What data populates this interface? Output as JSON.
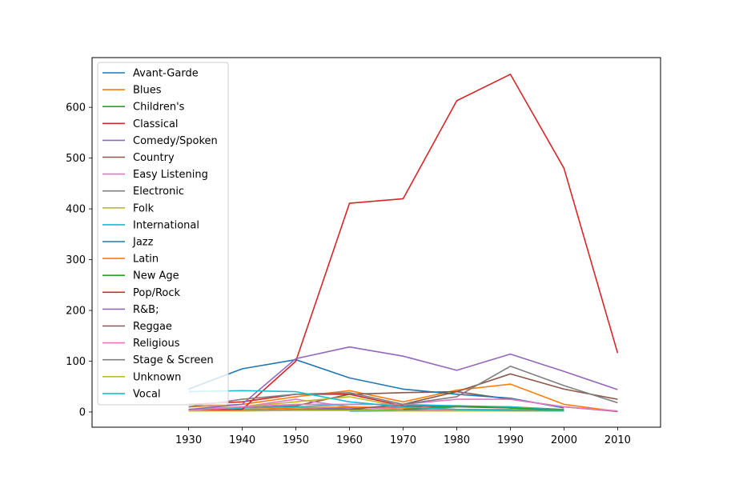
{
  "chart_data": {
    "type": "line",
    "title": "",
    "xlabel": "",
    "ylabel": "",
    "x": [
      1930,
      1940,
      1950,
      1960,
      1970,
      1980,
      1990,
      2000,
      2010
    ],
    "xlim": [
      1912,
      2018
    ],
    "ylim": [
      -30,
      698
    ],
    "xticks": [
      1930,
      1940,
      1950,
      1960,
      1970,
      1980,
      1990,
      2000,
      2010
    ],
    "yticks": [
      0,
      100,
      200,
      300,
      400,
      500,
      600
    ],
    "legend_position": "upper-left",
    "grid": false,
    "series": [
      {
        "name": "Avant-Garde",
        "color": "#1f77b4",
        "values": [
          null,
          null,
          null,
          2,
          2,
          2,
          3,
          2,
          null
        ]
      },
      {
        "name": "Blues",
        "color": "#ff7f0e",
        "values": [
          10,
          15,
          30,
          42,
          20,
          43,
          55,
          15,
          1
        ]
      },
      {
        "name": "Children's",
        "color": "#2ca02c",
        "values": [
          3,
          3,
          5,
          5,
          3,
          3,
          3,
          2,
          null
        ]
      },
      {
        "name": "Classical",
        "color": "#d62728",
        "values": [
          15,
          20,
          35,
          35,
          12,
          10,
          8,
          3,
          null
        ]
      },
      {
        "name": "Comedy/Spoken",
        "color": "#9467bd",
        "values": [
          2,
          2,
          5,
          8,
          10,
          5,
          4,
          2,
          null
        ]
      },
      {
        "name": "Country",
        "color": "#8c564b",
        "values": [
          5,
          8,
          12,
          35,
          38,
          40,
          25,
          10,
          1
        ]
      },
      {
        "name": "Easy Listening",
        "color": "#e377c2",
        "values": [
          5,
          10,
          25,
          10,
          5,
          3,
          3,
          2,
          null
        ]
      },
      {
        "name": "Electronic",
        "color": "#7f7f7f",
        "values": [
          null,
          null,
          null,
          null,
          3,
          10,
          10,
          5,
          null
        ]
      },
      {
        "name": "Folk",
        "color": "#bcbd22",
        "values": [
          5,
          10,
          20,
          30,
          10,
          5,
          3,
          2,
          null
        ]
      },
      {
        "name": "International",
        "color": "#17becf",
        "values": [
          5,
          8,
          10,
          15,
          15,
          12,
          10,
          3,
          null
        ]
      },
      {
        "name": "Jazz",
        "color": "#1f77b4",
        "values": [
          45,
          85,
          103,
          67,
          45,
          35,
          27,
          8,
          null
        ]
      },
      {
        "name": "Latin",
        "color": "#ff7f0e",
        "values": [
          3,
          5,
          8,
          10,
          8,
          5,
          5,
          2,
          null
        ]
      },
      {
        "name": "New Age",
        "color": "#2ca02c",
        "values": [
          null,
          null,
          null,
          null,
          5,
          12,
          8,
          3,
          null
        ]
      },
      {
        "name": "Pop/Rock",
        "color": "#d62728",
        "values": [
          2,
          5,
          100,
          411,
          420,
          613,
          665,
          480,
          116
        ]
      },
      {
        "name": "R&B;",
        "color": "#9467bd",
        "values": [
          5,
          15,
          105,
          128,
          110,
          82,
          114,
          80,
          44
        ]
      },
      {
        "name": "Reggae",
        "color": "#8c564b",
        "values": [
          null,
          null,
          null,
          5,
          15,
          40,
          75,
          45,
          25
        ]
      },
      {
        "name": "Religious",
        "color": "#e377c2",
        "values": [
          3,
          10,
          15,
          15,
          15,
          25,
          25,
          10,
          2
        ]
      },
      {
        "name": "Stage & Screen",
        "color": "#7f7f7f",
        "values": [
          10,
          25,
          35,
          38,
          15,
          30,
          90,
          52,
          18
        ]
      },
      {
        "name": "Unknown",
        "color": "#bcbd22",
        "values": [
          2,
          2,
          3,
          3,
          2,
          2,
          2,
          2,
          null
        ]
      },
      {
        "name": "Vocal",
        "color": "#17becf",
        "values": [
          40,
          42,
          40,
          20,
          10,
          5,
          3,
          2,
          null
        ]
      }
    ]
  }
}
